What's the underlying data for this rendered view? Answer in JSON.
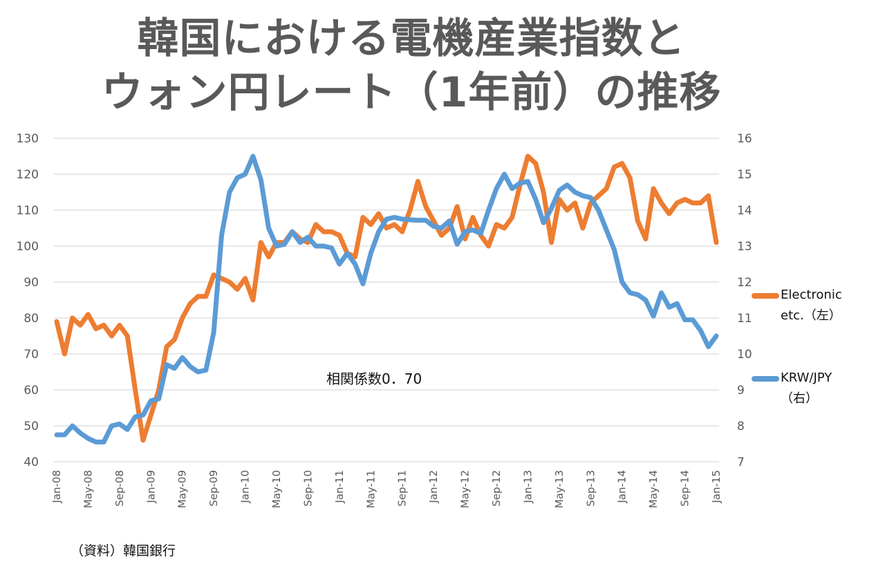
{
  "title": {
    "line1": "韓国における電機産業指数と",
    "line2": "ウォン円レート（1年前）の推移"
  },
  "annotation": "相関係数0．70",
  "source": "（資料）韓国銀行",
  "colors": {
    "electronic": "#ED7D31",
    "krw_jpy": "#5B9BD5",
    "grid": "#D9D9D9",
    "tick_text": "#595959"
  },
  "chart_data": {
    "type": "line",
    "title": "韓国における電機産業指数とウォン円レート（1年前）の推移",
    "xlabel": "",
    "ylabel_left": "",
    "ylabel_right": "",
    "x_start": "Jan-08",
    "x_end": "Jan-15",
    "x_frequency": "monthly",
    "x_tick_labels": [
      "Jan-08",
      "May-08",
      "Sep-08",
      "Jan-09",
      "May-09",
      "Sep-09",
      "Jan-10",
      "May-10",
      "Sep-10",
      "Jan-11",
      "May-11",
      "Sep-11",
      "Jan-12",
      "May-12",
      "Sep-12",
      "Jan-13",
      "May-13",
      "Sep-13",
      "Jan-14",
      "May-14",
      "Sep-14",
      "Jan-15"
    ],
    "y_left": {
      "range": [
        40,
        130
      ],
      "ticks": [
        40,
        50,
        60,
        70,
        80,
        90,
        100,
        110,
        120,
        130
      ]
    },
    "y_right": {
      "range": [
        7,
        16
      ],
      "ticks": [
        7,
        8,
        9,
        10,
        11,
        12,
        13,
        14,
        15,
        16
      ]
    },
    "grid": true,
    "legend_position": "right",
    "series": [
      {
        "name": "Electronic etc.（左）",
        "axis": "left",
        "values": [
          79,
          70,
          80,
          78,
          81,
          77,
          78,
          75,
          78,
          75,
          60,
          46,
          53,
          60,
          72,
          74,
          80,
          84,
          86,
          86,
          92,
          91,
          90,
          88,
          91,
          85,
          101,
          97,
          101,
          101,
          104,
          102,
          101,
          106,
          104,
          104,
          103,
          98,
          97,
          108,
          106,
          109,
          105,
          106,
          104,
          110,
          118,
          111,
          107,
          103,
          105,
          111,
          102,
          108,
          103,
          100,
          106,
          105,
          108,
          117,
          125,
          123,
          115,
          101,
          113,
          110,
          112,
          105,
          112,
          114,
          116,
          122,
          123,
          119,
          107,
          102,
          116,
          112,
          109,
          112,
          113,
          112,
          112,
          114,
          101
        ]
      },
      {
        "name": "KRW/JPY（右）",
        "axis": "right",
        "values": [
          7.75,
          7.75,
          8.0,
          7.8,
          7.65,
          7.55,
          7.55,
          8.0,
          8.05,
          7.9,
          8.25,
          8.3,
          8.7,
          8.75,
          9.7,
          9.6,
          9.9,
          9.65,
          9.5,
          9.55,
          10.6,
          13.3,
          14.5,
          14.9,
          15.0,
          15.5,
          14.85,
          13.5,
          13.0,
          13.05,
          13.4,
          13.1,
          13.25,
          13.0,
          13.0,
          12.95,
          12.5,
          12.8,
          12.5,
          11.95,
          12.8,
          13.4,
          13.75,
          13.8,
          13.75,
          13.73,
          13.72,
          13.72,
          13.55,
          13.5,
          13.7,
          13.05,
          13.4,
          13.45,
          13.35,
          14.0,
          14.6,
          15.0,
          14.6,
          14.75,
          14.8,
          14.3,
          13.65,
          14.05,
          14.55,
          14.7,
          14.5,
          14.4,
          14.35,
          14.0,
          13.45,
          12.9,
          12.0,
          11.7,
          11.65,
          11.5,
          11.05,
          11.7,
          11.3,
          11.4,
          10.95,
          10.95,
          10.65,
          10.2,
          10.5
        ]
      }
    ],
    "annotations": [
      "相関係数0．70"
    ]
  },
  "legend": {
    "electronic": "Electronic\netc.（左）",
    "krw_jpy": "KRW/JPY\n（右）"
  }
}
